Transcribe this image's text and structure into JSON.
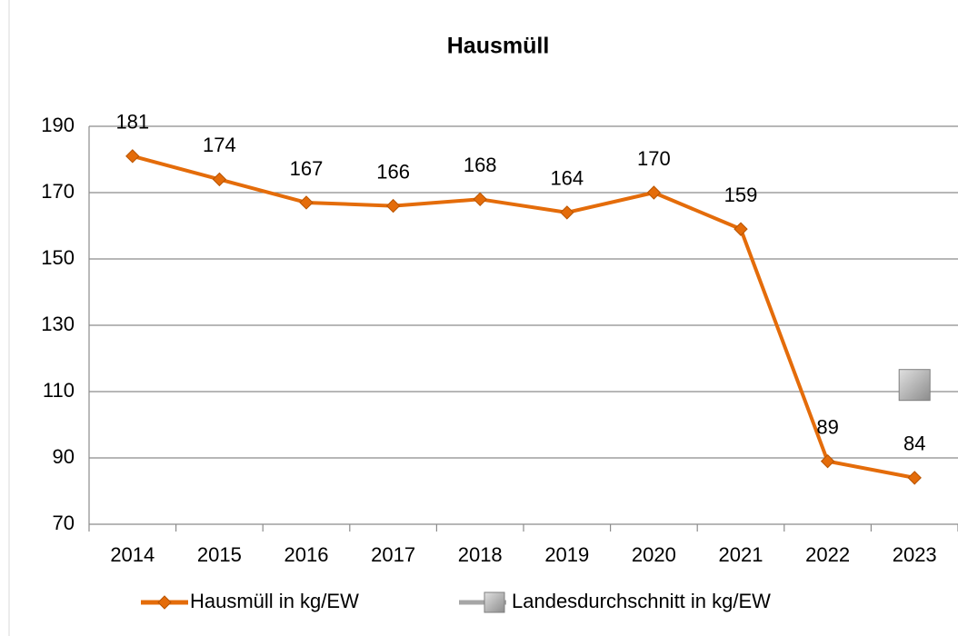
{
  "chart_data": {
    "type": "line",
    "title": "Hausmüll",
    "categories": [
      "2014",
      "2015",
      "2016",
      "2017",
      "2018",
      "2019",
      "2020",
      "2021",
      "2022",
      "2023"
    ],
    "series": [
      {
        "name": "Hausmüll in kg/EW",
        "color": "#e46c0a",
        "marker": "diamond",
        "data_labels": true,
        "values": [
          181,
          174,
          167,
          166,
          168,
          164,
          170,
          159,
          89,
          84
        ]
      },
      {
        "name": "Landesdurchschnitt in kg/EW",
        "color": "#a6a6a6",
        "marker": "square",
        "data_labels": false,
        "values": [
          null,
          null,
          null,
          null,
          null,
          null,
          null,
          null,
          null,
          112
        ]
      }
    ],
    "ylim": [
      70,
      190
    ],
    "yticks": [
      70,
      90,
      110,
      130,
      150,
      170,
      190
    ],
    "grid": true,
    "legend": "bottom"
  }
}
